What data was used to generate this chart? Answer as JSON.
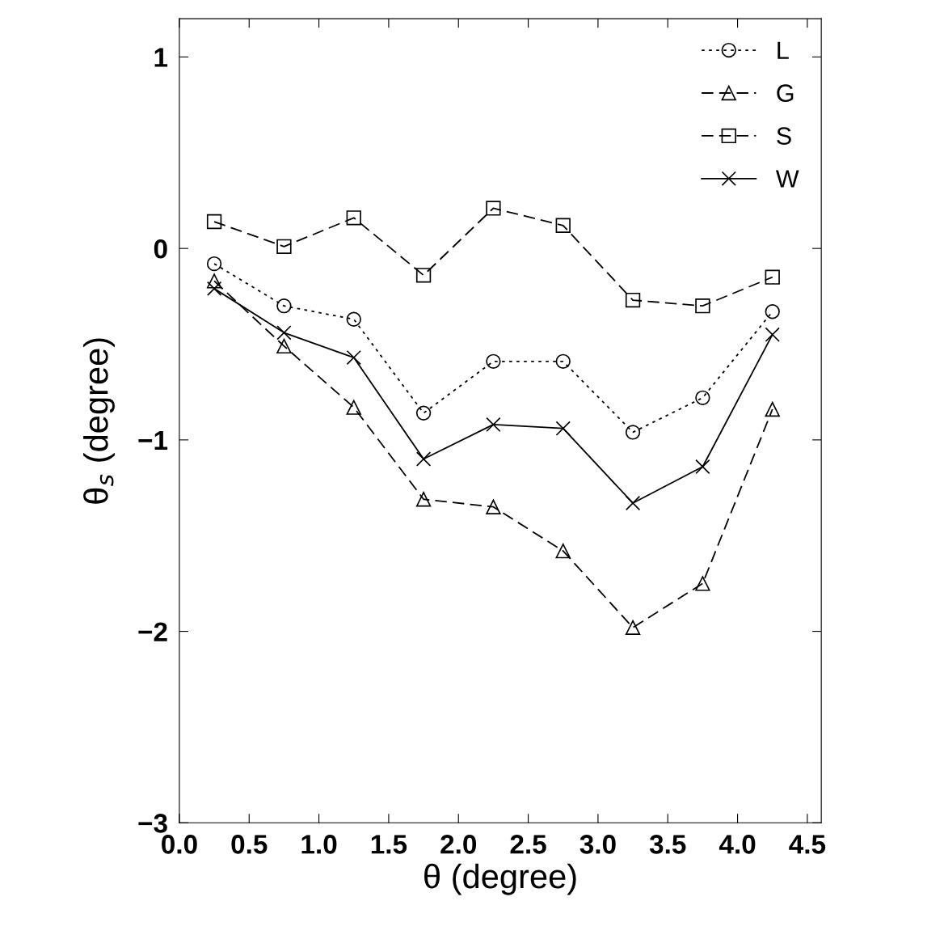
{
  "chart_data": {
    "type": "line",
    "xlabel": "θ (degree)",
    "ylabel": "θ$_{s}$ (degree)",
    "x": [
      0.25,
      0.75,
      1.25,
      1.75,
      2.25,
      2.75,
      3.25,
      3.75,
      4.25
    ],
    "series": [
      {
        "name": "L",
        "color": "#000000",
        "marker": "circle",
        "line_style": "dotted",
        "values": [
          -0.08,
          -0.3,
          -0.37,
          -0.86,
          -0.59,
          -0.59,
          -0.96,
          -0.78,
          -0.33
        ]
      },
      {
        "name": "G",
        "color": "#000000",
        "marker": "triangle",
        "line_style": "dashed",
        "values": [
          -0.17,
          -0.51,
          -0.83,
          -1.31,
          -1.35,
          -1.58,
          -1.98,
          -1.75,
          -0.84
        ]
      },
      {
        "name": "S",
        "color": "#000000",
        "marker": "square",
        "line_style": "dashed",
        "values": [
          0.14,
          0.01,
          0.16,
          -0.14,
          0.21,
          0.12,
          -0.27,
          -0.3,
          -0.15
        ]
      },
      {
        "name": "W",
        "color": "#000000",
        "marker": "cross",
        "line_style": "solid",
        "values": [
          -0.21,
          -0.44,
          -0.57,
          -1.1,
          -0.92,
          -0.94,
          -1.33,
          -1.14,
          -0.45
        ]
      }
    ],
    "xlim": [
      0.0,
      4.6
    ],
    "ylim": [
      -3,
      1.2
    ],
    "xticks": [
      {
        "value": 0,
        "label": "0.0"
      },
      0.5,
      {
        "value": 1,
        "label": "1.0"
      },
      1.5,
      {
        "value": 2,
        "label": "2.0"
      },
      2.5,
      {
        "value": 3,
        "label": "3.0"
      },
      3.5,
      {
        "value": 4,
        "label": "4.0"
      },
      4.5
    ],
    "yticks": [
      {
        "value": -3,
        "label": "−3"
      },
      {
        "value": -2,
        "label": "−2"
      },
      {
        "value": -1,
        "label": "−1"
      },
      0,
      1
    ],
    "grid": false,
    "legend": "top right"
  }
}
